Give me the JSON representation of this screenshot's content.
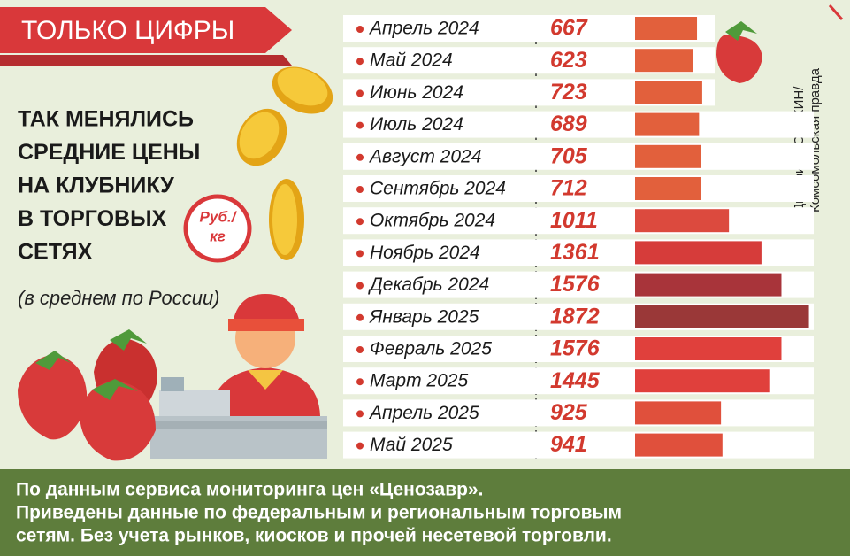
{
  "banner": "ТОЛЬКО ЦИФРЫ",
  "credit": [
    "Дмитрий ПОЛУХИН/",
    "Комсомольская правда"
  ],
  "footer": [
    "По данным сервиса мониторинга цен «Ценозавр».",
    "Приведены данные по федеральным и региональным торговым",
    "сетям. Без учета рынков, киосков и прочей несетевой торговли."
  ],
  "chart_data": {
    "type": "bar",
    "title": [
      "ТАК МЕНЯЛИСЬ",
      "СРЕДНИЕ ЦЕНЫ",
      "НА КЛУБНИКУ",
      "В ТОРГОВЫХ",
      "СЕТЯХ"
    ],
    "subtitle": "(в среднем по России)",
    "unit": [
      "Руб./",
      "кг"
    ],
    "categories": [
      "Апрель 2024",
      "Май 2024",
      "Июнь 2024",
      "Июль 2024",
      "Август 2024",
      "Сентябрь 2024",
      "Октябрь 2024",
      "Ноябрь 2024",
      "Декабрь 2024",
      "Январь 2025",
      "Февраль 2025",
      "Март 2025",
      "Апрель 2025",
      "Май 2025"
    ],
    "values": [
      667,
      623,
      723,
      689,
      705,
      712,
      1011,
      1361,
      1576,
      1872,
      1576,
      1445,
      925,
      941
    ],
    "colors": [
      "#e2603c",
      "#e2603c",
      "#e2603c",
      "#e2603c",
      "#e2603c",
      "#e2603c",
      "#dc4a3e",
      "#d63c3a",
      "#a8343a",
      "#9a3838",
      "#e0403c",
      "#e0403c",
      "#e0503c",
      "#e0503c"
    ],
    "label_color": "#d2392e"
  }
}
